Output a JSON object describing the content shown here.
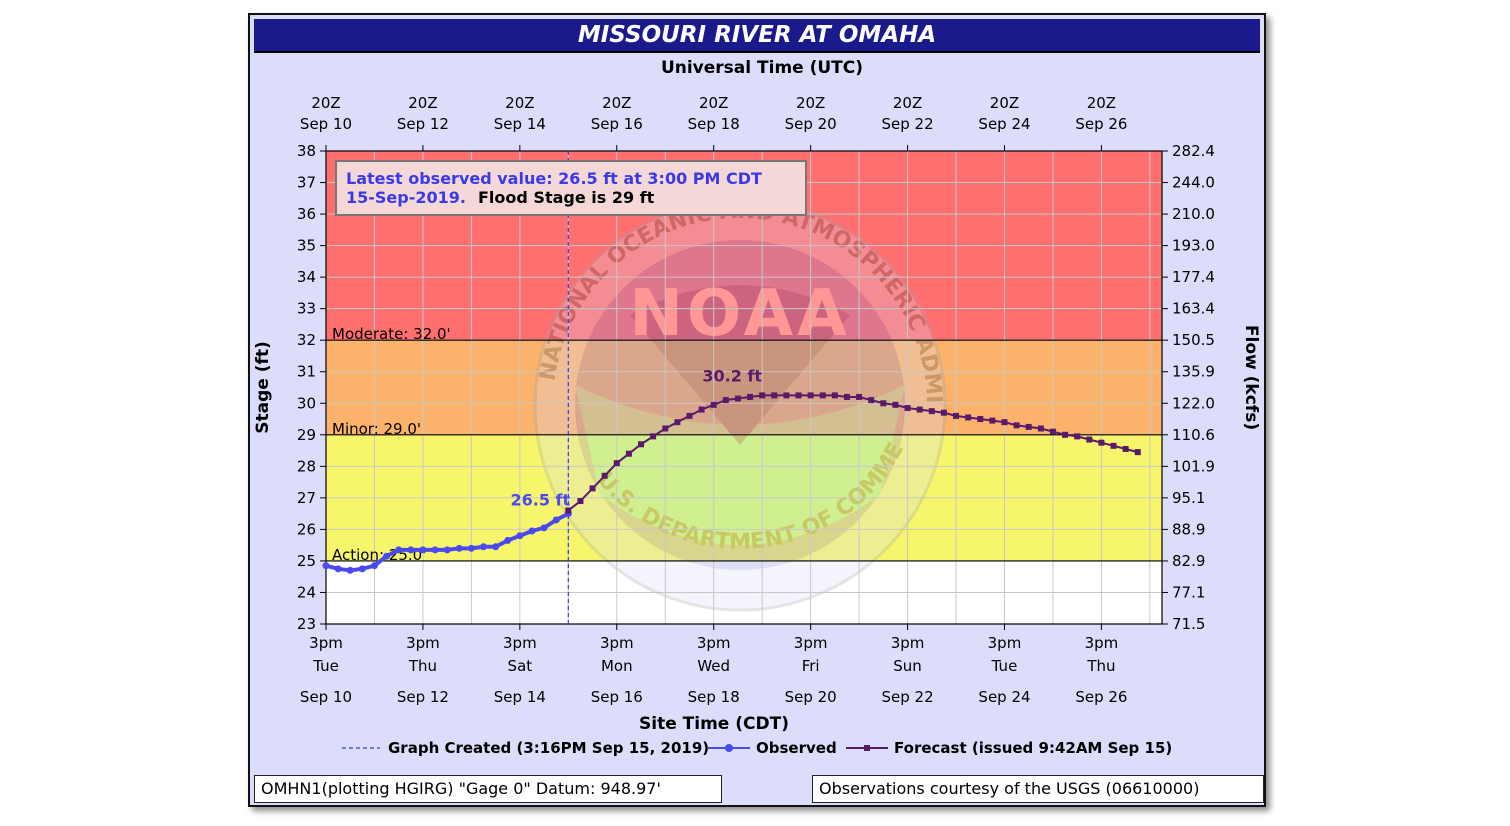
{
  "title": "MISSOURI RIVER AT OMAHA",
  "top_axis_title": "Universal Time (UTC)",
  "top_ticks": [
    {
      "line1": "20Z",
      "line2": "Sep 10"
    },
    {
      "line1": "20Z",
      "line2": "Sep 12"
    },
    {
      "line1": "20Z",
      "line2": "Sep 14"
    },
    {
      "line1": "20Z",
      "line2": "Sep 16"
    },
    {
      "line1": "20Z",
      "line2": "Sep 18"
    },
    {
      "line1": "20Z",
      "line2": "Sep 20"
    },
    {
      "line1": "20Z",
      "line2": "Sep 22"
    },
    {
      "line1": "20Z",
      "line2": "Sep 24"
    },
    {
      "line1": "20Z",
      "line2": "Sep 26"
    }
  ],
  "bottom_axis_title": "Site Time (CDT)",
  "bottom_ticks": [
    {
      "time": "3pm",
      "day": "Tue",
      "date": "Sep 10"
    },
    {
      "time": "3pm",
      "day": "Thu",
      "date": "Sep 12"
    },
    {
      "time": "3pm",
      "day": "Sat",
      "date": "Sep 14"
    },
    {
      "time": "3pm",
      "day": "Mon",
      "date": "Sep 16"
    },
    {
      "time": "3pm",
      "day": "Wed",
      "date": "Sep 18"
    },
    {
      "time": "3pm",
      "day": "Fri",
      "date": "Sep 20"
    },
    {
      "time": "3pm",
      "day": "Sun",
      "date": "Sep 22"
    },
    {
      "time": "3pm",
      "day": "Tue",
      "date": "Sep 24"
    },
    {
      "time": "3pm",
      "day": "Thu",
      "date": "Sep 26"
    }
  ],
  "left_axis_title": "Stage (ft)",
  "right_axis_title": "Flow (kcfs)",
  "stage_ticks": [
    "23",
    "24",
    "25",
    "26",
    "27",
    "28",
    "29",
    "30",
    "31",
    "32",
    "33",
    "34",
    "35",
    "36",
    "37",
    "38"
  ],
  "flow_ticks": [
    "71.5",
    "77.1",
    "82.9",
    "88.9",
    "95.1",
    "101.9",
    "110.6",
    "122.0",
    "135.9",
    "150.5",
    "163.4",
    "177.4",
    "193.0",
    "210.0",
    "244.0",
    "282.4"
  ],
  "callout": {
    "line1": "Latest observed value: 26.5 ft at 3:00 PM CDT",
    "line2_date": "15-Sep-2019.",
    "line2_flood": "Flood Stage is 29 ft"
  },
  "legend": {
    "created": "Graph Created (3:16PM Sep 15, 2019)",
    "observed": "Observed",
    "forecast": "Forecast (issued 9:42AM Sep 15)"
  },
  "footer": {
    "left": "OMHN1(plotting HGIRG) \"Gage 0\" Datum: 948.97'",
    "right": "Observations courtesy of the USGS (06610000)"
  },
  "watermark": {
    "text": "NOAA",
    "ring_top": "NATIONAL OCEANIC AND ATMOSPHERIC ADMINISTRATION",
    "ring_bottom": "U.S. DEPARTMENT OF COMMERCE"
  },
  "colors": {
    "major": "#ff6f6f",
    "moderate": "#fbb36c",
    "minor": "#f6f56c",
    "normal": "#ffffff",
    "observed": "#4a4af0",
    "forecast": "#5a1a6a",
    "frame_bg": "#dcdcfb",
    "title_bg": "#1a1a8c"
  },
  "chart_data": {
    "type": "line",
    "title": "MISSOURI RIVER AT OMAHA",
    "xlabel": "Site Time (CDT)",
    "ylabel": "Stage (ft)",
    "y2label": "Flow (kcfs)",
    "ylim": [
      23,
      38
    ],
    "xlim_days_label": [
      "Sep 10 3pm",
      "Sep 27 9pm"
    ],
    "grid": true,
    "thresholds": [
      {
        "name": "Action",
        "value": 25.0,
        "label": "Action: 25.0'"
      },
      {
        "name": "Minor",
        "value": 29.0,
        "label": "Minor: 29.0'"
      },
      {
        "name": "Moderate",
        "value": 32.0,
        "label": "Moderate: 32.0'"
      }
    ],
    "graph_created_day": 5.0,
    "series": [
      {
        "name": "Observed",
        "label": "26.5 ft",
        "x": [
          0.0,
          0.25,
          0.5,
          0.75,
          1.0,
          1.25,
          1.5,
          1.75,
          2.0,
          2.25,
          2.5,
          2.75,
          3.0,
          3.25,
          3.5,
          3.75,
          4.0,
          4.25,
          4.5,
          4.75,
          5.0
        ],
        "y": [
          24.85,
          24.75,
          24.7,
          24.75,
          24.85,
          25.15,
          25.35,
          25.35,
          25.35,
          25.35,
          25.35,
          25.4,
          25.4,
          25.45,
          25.45,
          25.65,
          25.8,
          25.95,
          26.05,
          26.3,
          26.5
        ]
      },
      {
        "name": "Forecast",
        "label": "30.2 ft",
        "x": [
          5.0,
          5.25,
          5.5,
          5.75,
          6.0,
          6.25,
          6.5,
          6.75,
          7.0,
          7.25,
          7.5,
          7.75,
          8.0,
          8.25,
          8.5,
          8.75,
          9.0,
          9.25,
          9.5,
          9.75,
          10.0,
          10.25,
          10.5,
          10.75,
          11.0,
          11.25,
          11.5,
          11.75,
          12.0,
          12.25,
          12.5,
          12.75,
          13.0,
          13.25,
          13.5,
          13.75,
          14.0,
          14.25,
          14.5,
          14.75,
          15.0,
          15.25,
          15.5,
          15.75,
          16.0,
          16.25,
          16.5,
          16.75
        ],
        "y": [
          26.6,
          26.9,
          27.3,
          27.7,
          28.1,
          28.4,
          28.7,
          28.95,
          29.2,
          29.4,
          29.6,
          29.8,
          29.95,
          30.1,
          30.15,
          30.2,
          30.25,
          30.25,
          30.25,
          30.25,
          30.25,
          30.25,
          30.25,
          30.2,
          30.2,
          30.1,
          30.0,
          29.95,
          29.85,
          29.8,
          29.75,
          29.7,
          29.6,
          29.55,
          29.5,
          29.45,
          29.4,
          29.3,
          29.25,
          29.2,
          29.1,
          29.0,
          28.95,
          28.85,
          28.75,
          28.65,
          28.55,
          28.45
        ]
      }
    ]
  }
}
